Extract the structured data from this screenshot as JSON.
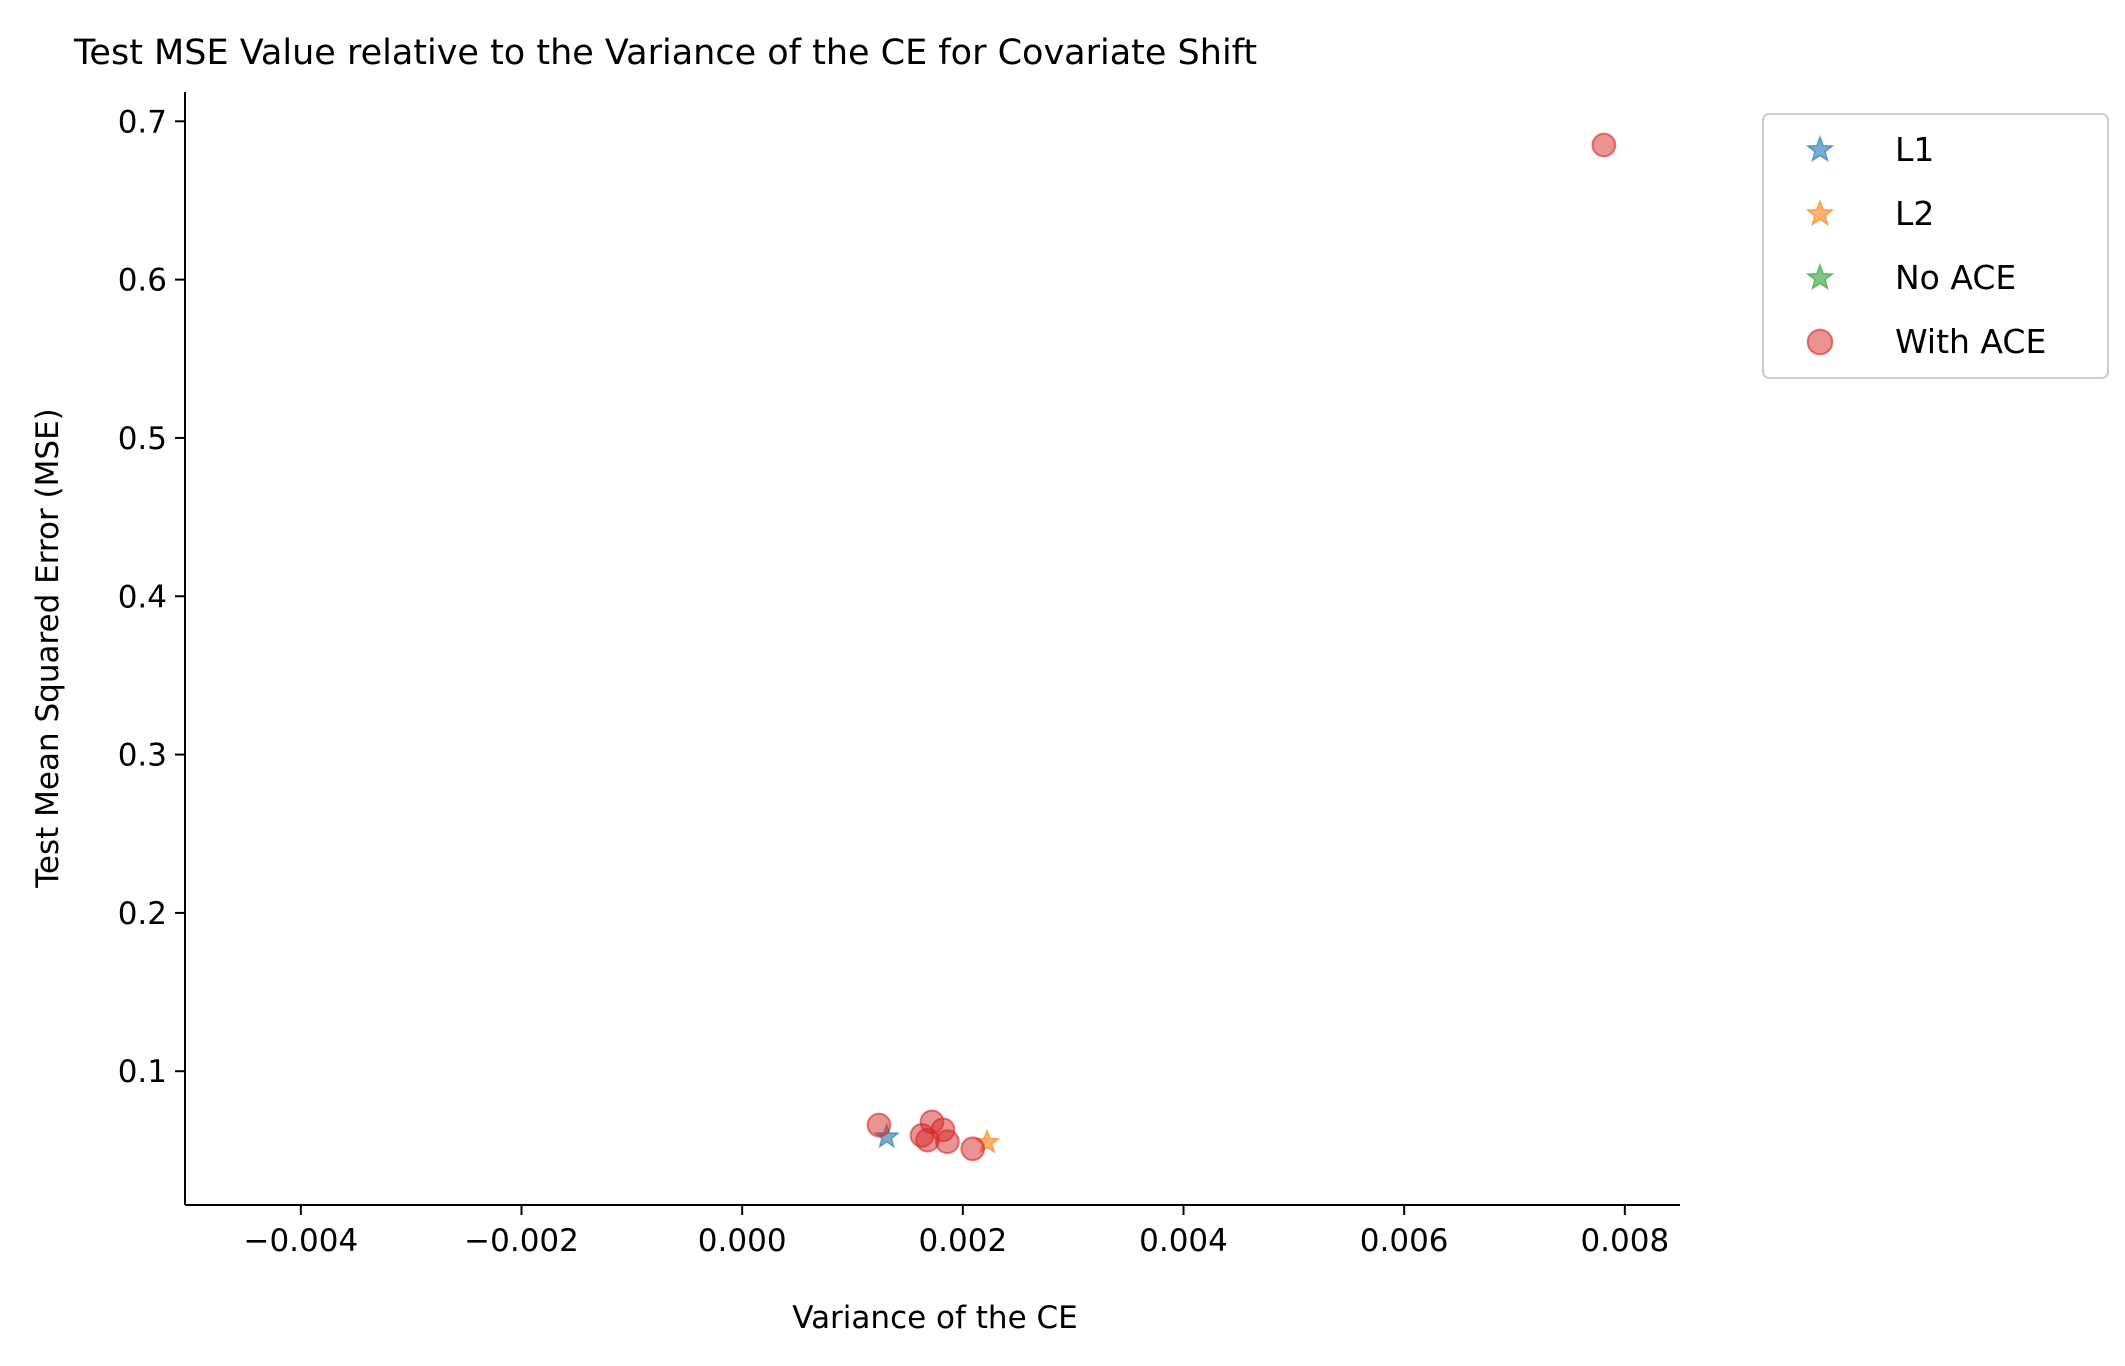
{
  "chart_data": {
    "type": "scatter",
    "title": "Test MSE Value relative to the Variance of the CE for Covariate Shift",
    "xlabel": "Variance of the CE",
    "ylabel": "Test Mean Squared Error (MSE)",
    "xlim": [
      -0.00505,
      0.0085
    ],
    "ylim": [
      0.0155,
      0.7185
    ],
    "xticks": [
      -0.004,
      -0.002,
      0.0,
      0.002,
      0.004,
      0.006,
      0.008
    ],
    "xtick_labels": [
      "−0.004",
      "−0.002",
      "0.000",
      "0.002",
      "0.004",
      "0.006",
      "0.008"
    ],
    "yticks": [
      0.1,
      0.2,
      0.3,
      0.4,
      0.5,
      0.6,
      0.7
    ],
    "ytick_labels": [
      "0.1",
      "0.2",
      "0.3",
      "0.4",
      "0.5",
      "0.6",
      "0.7"
    ],
    "grid": false,
    "legend_position": "outside-top-right",
    "series": [
      {
        "name": "L1",
        "marker": "star",
        "color": "#1f77b4",
        "points": [
          {
            "x": 0.00131,
            "y": 0.0585
          }
        ]
      },
      {
        "name": "L2",
        "marker": "star",
        "color": "#ff7f0e",
        "points": [
          {
            "x": 0.00222,
            "y": 0.055
          }
        ]
      },
      {
        "name": "No ACE",
        "marker": "star",
        "color": "#2ca02c",
        "points": []
      },
      {
        "name": "With ACE",
        "marker": "circle",
        "color": "#d62728",
        "points": [
          {
            "x": 0.00124,
            "y": 0.066
          },
          {
            "x": 0.00172,
            "y": 0.068
          },
          {
            "x": 0.00182,
            "y": 0.063
          },
          {
            "x": 0.00163,
            "y": 0.0595
          },
          {
            "x": 0.00168,
            "y": 0.0565
          },
          {
            "x": 0.00186,
            "y": 0.0555
          },
          {
            "x": 0.00209,
            "y": 0.051
          },
          {
            "x": 0.00781,
            "y": 0.685
          }
        ]
      }
    ]
  }
}
